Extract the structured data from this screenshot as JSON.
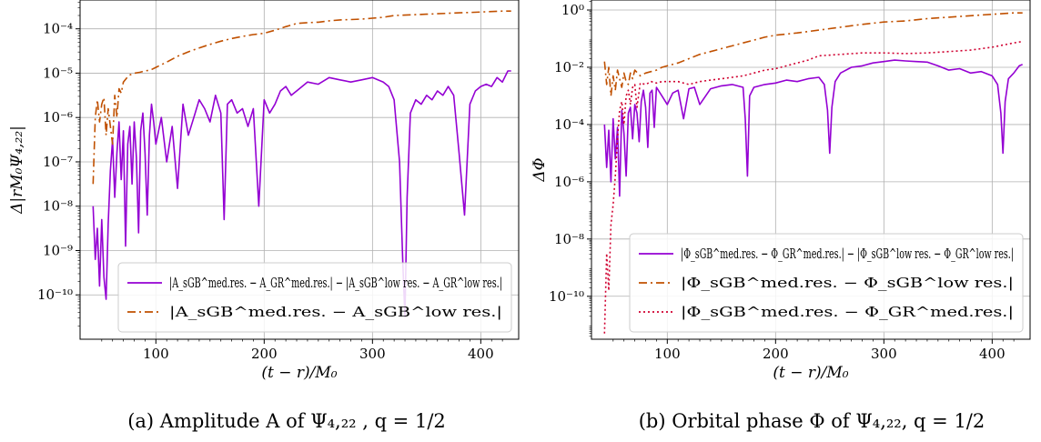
{
  "chart_data": [
    {
      "type": "line",
      "panel": "a",
      "ylabel": "Δ|rM₀Ψ₄,₂₂|",
      "xlabel": "(t − r)/M₀",
      "caption": "(a) Amplitude A of Ψ₄,₂₂ , q = 1/2",
      "xlim": [
        30,
        435
      ],
      "ylim_log10": [
        -11.0,
        -3.35
      ],
      "yscale": "log",
      "grid": true,
      "legend_position": "lower-right",
      "x_ticks": [
        100,
        200,
        300,
        400
      ],
      "y_ticks": [
        {
          "exp": -4,
          "label": "10⁻⁴"
        },
        {
          "exp": -5,
          "label": "10⁻⁵"
        },
        {
          "exp": -6,
          "label": "10⁻⁶"
        },
        {
          "exp": -7,
          "label": "10⁻⁷"
        },
        {
          "exp": -8,
          "label": "10⁻⁸"
        },
        {
          "exp": -9,
          "label": "10⁻⁹"
        },
        {
          "exp": -10,
          "label": "10⁻¹⁰"
        }
      ],
      "series": [
        {
          "name": "|A_sGB^med.res. − A_GR^med.res.| − |A_sGB^low res. − A_GR^low res.|",
          "color": "#9400d3",
          "style": "solid",
          "x": [
            42,
            44,
            46,
            48,
            50,
            52,
            54,
            56,
            58,
            60,
            62,
            64,
            66,
            68,
            70,
            72,
            74,
            76,
            78,
            80,
            82,
            84,
            86,
            88,
            90,
            92,
            94,
            96,
            98,
            100,
            105,
            110,
            115,
            120,
            125,
            130,
            135,
            140,
            145,
            150,
            155,
            160,
            163,
            166,
            170,
            175,
            180,
            185,
            190,
            195,
            200,
            205,
            210,
            215,
            220,
            225,
            230,
            240,
            250,
            260,
            270,
            280,
            290,
            300,
            310,
            315,
            320,
            325,
            328,
            330,
            332,
            335,
            340,
            345,
            350,
            355,
            360,
            365,
            370,
            375,
            380,
            385,
            390,
            395,
            400,
            405,
            410,
            415,
            420,
            425,
            428
          ],
          "y_log10": [
            -8.0,
            -9.2,
            -8.5,
            -9.8,
            -8.3,
            -9.6,
            -10.1,
            -8.4,
            -7.2,
            -6.5,
            -7.8,
            -6.8,
            -6.1,
            -7.4,
            -6.3,
            -8.9,
            -6.6,
            -6.2,
            -7.5,
            -6.1,
            -6.9,
            -8.6,
            -6.3,
            -5.9,
            -6.8,
            -8.2,
            -6.4,
            -5.7,
            -6.1,
            -6.6,
            -6.0,
            -7.0,
            -6.2,
            -7.6,
            -5.7,
            -6.4,
            -6.0,
            -5.6,
            -5.8,
            -6.1,
            -5.5,
            -5.9,
            -8.3,
            -5.7,
            -5.6,
            -5.9,
            -5.8,
            -6.2,
            -5.8,
            -8.0,
            -5.6,
            -5.9,
            -5.7,
            -5.4,
            -5.3,
            -5.5,
            -5.4,
            -5.2,
            -5.25,
            -5.1,
            -5.15,
            -5.2,
            -5.15,
            -5.1,
            -5.2,
            -5.3,
            -5.6,
            -7.0,
            -9.3,
            -10.5,
            -7.8,
            -5.9,
            -5.6,
            -5.7,
            -5.5,
            -5.6,
            -5.4,
            -5.5,
            -5.3,
            -5.5,
            -6.8,
            -8.2,
            -5.7,
            -5.4,
            -5.3,
            -5.25,
            -5.3,
            -5.1,
            -5.2,
            -4.95,
            -4.95
          ]
        },
        {
          "name": "|A_sGB^med.res. − A_sGB^low res.|",
          "color": "#c05000",
          "style": "dashdot",
          "x": [
            42,
            44,
            46,
            48,
            50,
            52,
            54,
            56,
            58,
            60,
            62,
            64,
            66,
            68,
            70,
            75,
            80,
            85,
            90,
            95,
            100,
            110,
            120,
            130,
            140,
            150,
            160,
            170,
            180,
            190,
            200,
            210,
            220,
            230,
            240,
            250,
            260,
            270,
            280,
            290,
            300,
            310,
            320,
            330,
            340,
            350,
            360,
            370,
            380,
            390,
            400,
            410,
            420,
            428
          ],
          "y_log10": [
            -7.5,
            -6.0,
            -5.6,
            -6.1,
            -5.7,
            -5.55,
            -6.4,
            -5.8,
            -6.2,
            -6.6,
            -5.5,
            -6.0,
            -5.35,
            -5.45,
            -5.2,
            -5.05,
            -5.0,
            -4.98,
            -4.95,
            -4.93,
            -4.87,
            -4.75,
            -4.62,
            -4.52,
            -4.43,
            -4.35,
            -4.28,
            -4.22,
            -4.17,
            -4.13,
            -4.1,
            -4.03,
            -3.95,
            -3.88,
            -3.86,
            -3.85,
            -3.82,
            -3.8,
            -3.79,
            -3.78,
            -3.76,
            -3.74,
            -3.7,
            -3.69,
            -3.68,
            -3.67,
            -3.66,
            -3.65,
            -3.64,
            -3.63,
            -3.62,
            -3.61,
            -3.6,
            -3.6
          ]
        }
      ]
    },
    {
      "type": "line",
      "panel": "b",
      "ylabel": "ΔΦ",
      "xlabel": "(t − r)/M₀",
      "caption": "(b) Orbital phase Φ of Ψ₄,₂₂, q = 1/2",
      "xlim": [
        30,
        435
      ],
      "ylim_log10": [
        -11.5,
        0.35
      ],
      "yscale": "log",
      "grid": true,
      "legend_position": "lower-right",
      "x_ticks": [
        100,
        200,
        300,
        400
      ],
      "y_ticks": [
        {
          "exp": 0,
          "label": "10⁰"
        },
        {
          "exp": -2,
          "label": "10⁻²"
        },
        {
          "exp": -4,
          "label": "10⁻⁴"
        },
        {
          "exp": -6,
          "label": "10⁻⁶"
        },
        {
          "exp": -8,
          "label": "10⁻⁸"
        },
        {
          "exp": -10,
          "label": "10⁻¹⁰"
        }
      ],
      "series": [
        {
          "name": "|Φ_sGB^med.res. − Φ_GR^med.res.| − |Φ_sGB^low res. − Φ_GR^low res.|",
          "color": "#9400d3",
          "style": "solid",
          "x": [
            42,
            44,
            46,
            48,
            50,
            52,
            54,
            56,
            58,
            60,
            62,
            64,
            66,
            68,
            70,
            72,
            74,
            76,
            78,
            80,
            82,
            84,
            86,
            88,
            90,
            95,
            100,
            105,
            110,
            115,
            120,
            125,
            130,
            140,
            150,
            160,
            170,
            172,
            174,
            176,
            180,
            190,
            200,
            210,
            220,
            230,
            240,
            245,
            248,
            250,
            252,
            255,
            260,
            270,
            280,
            290,
            300,
            310,
            320,
            330,
            340,
            350,
            360,
            370,
            380,
            390,
            400,
            405,
            408,
            410,
            412,
            415,
            420,
            425,
            428
          ],
          "y_log10": [
            -4.0,
            -5.5,
            -4.2,
            -6.0,
            -3.8,
            -5.2,
            -4.1,
            -6.5,
            -3.5,
            -4.3,
            -5.8,
            -3.6,
            -3.4,
            -4.5,
            -3.3,
            -3.6,
            -4.6,
            -3.2,
            -2.8,
            -3.4,
            -4.8,
            -2.9,
            -2.8,
            -4.1,
            -2.7,
            -3.0,
            -3.3,
            -2.9,
            -2.8,
            -3.8,
            -2.75,
            -2.7,
            -3.3,
            -2.75,
            -2.65,
            -2.6,
            -2.7,
            -3.8,
            -5.8,
            -3.0,
            -2.7,
            -2.6,
            -2.55,
            -2.45,
            -2.5,
            -2.4,
            -2.35,
            -2.6,
            -3.5,
            -5.0,
            -3.4,
            -2.5,
            -2.2,
            -2.0,
            -1.95,
            -1.85,
            -1.8,
            -1.75,
            -1.78,
            -1.8,
            -1.82,
            -1.95,
            -2.1,
            -2.05,
            -2.2,
            -2.15,
            -2.3,
            -2.6,
            -3.6,
            -5.0,
            -3.2,
            -2.4,
            -2.2,
            -1.95,
            -1.9
          ]
        },
        {
          "name": "|Φ_sGB^med.res. − Φ_sGB^low res.|",
          "color": "#c05000",
          "style": "dashdot",
          "x": [
            42,
            44,
            46,
            48,
            50,
            52,
            54,
            56,
            58,
            60,
            62,
            64,
            66,
            68,
            70,
            75,
            80,
            85,
            90,
            95,
            100,
            110,
            120,
            130,
            140,
            150,
            160,
            170,
            180,
            190,
            200,
            220,
            240,
            260,
            280,
            300,
            320,
            340,
            360,
            380,
            400,
            420,
            428
          ],
          "y_log10": [
            -1.8,
            -2.6,
            -2.0,
            -3.0,
            -2.3,
            -2.8,
            -2.1,
            -2.4,
            -2.7,
            -2.2,
            -2.5,
            -2.6,
            -2.2,
            -2.4,
            -2.1,
            -2.3,
            -2.2,
            -2.15,
            -2.1,
            -2.0,
            -1.95,
            -1.85,
            -1.7,
            -1.55,
            -1.45,
            -1.35,
            -1.25,
            -1.15,
            -1.05,
            -0.95,
            -0.88,
            -0.8,
            -0.7,
            -0.6,
            -0.5,
            -0.42,
            -0.38,
            -0.3,
            -0.25,
            -0.2,
            -0.15,
            -0.1,
            -0.1
          ]
        },
        {
          "name": "|Φ_sGB^med.res. − Φ_GR^med.res.|",
          "color": "#d00030",
          "style": "dotted",
          "x": [
            42,
            44,
            46,
            48,
            50,
            52,
            54,
            56,
            58,
            60,
            62,
            64,
            66,
            68,
            70,
            72,
            75,
            80,
            85,
            90,
            95,
            100,
            110,
            120,
            130,
            140,
            150,
            160,
            170,
            180,
            190,
            200,
            210,
            220,
            230,
            240,
            260,
            280,
            300,
            320,
            340,
            360,
            380,
            400,
            420,
            428
          ],
          "y_log10": [
            -11.3,
            -8.5,
            -9.8,
            -7.5,
            -6.8,
            -5.8,
            -4.5,
            -3.5,
            -3.2,
            -4.0,
            -3.0,
            -2.8,
            -3.3,
            -2.7,
            -2.6,
            -3.4,
            -2.55,
            -2.6,
            -2.5,
            -2.55,
            -2.5,
            -2.5,
            -2.5,
            -2.6,
            -2.5,
            -2.45,
            -2.4,
            -2.35,
            -2.3,
            -2.2,
            -2.1,
            -2.05,
            -1.95,
            -1.85,
            -1.75,
            -1.6,
            -1.55,
            -1.5,
            -1.5,
            -1.52,
            -1.5,
            -1.45,
            -1.4,
            -1.3,
            -1.15,
            -1.1
          ]
        }
      ]
    }
  ]
}
